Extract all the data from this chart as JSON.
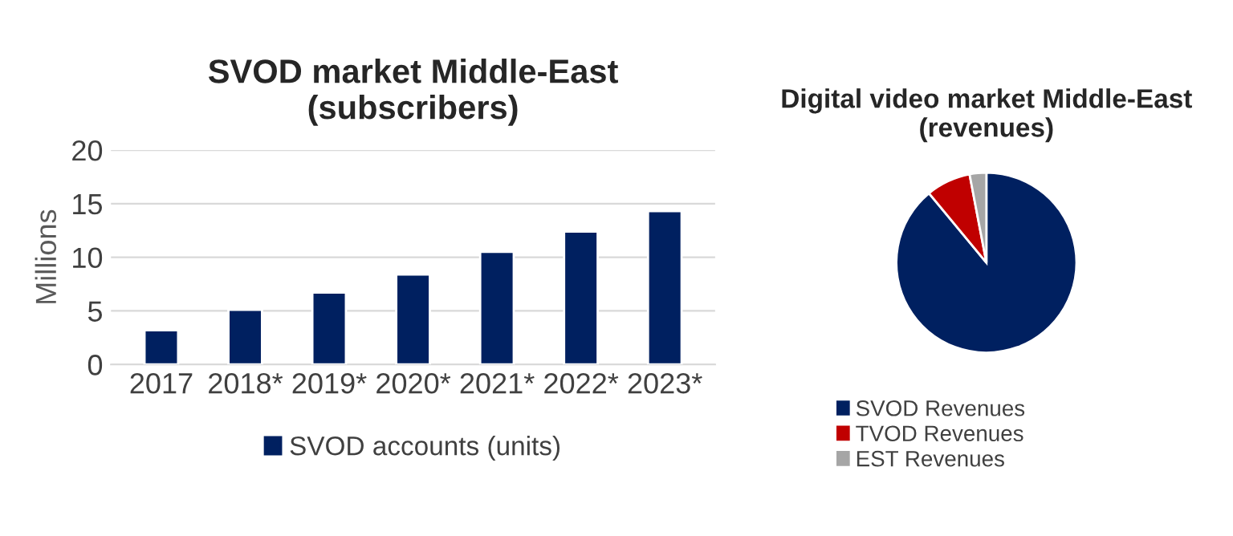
{
  "chart_data": [
    {
      "type": "bar",
      "title": "SVOD market Middle-East\n(subscribers)",
      "ylabel": "Millions",
      "categories": [
        "2017",
        "2018*",
        "2019*",
        "2020*",
        "2021*",
        "2022*",
        "2023*"
      ],
      "series": [
        {
          "name": "SVOD accounts (units)",
          "color": "#002060",
          "values": [
            3.2,
            5.1,
            6.7,
            8.4,
            10.5,
            12.4,
            14.3
          ]
        }
      ],
      "ylim": [
        0,
        20
      ],
      "yticks": [
        0,
        5,
        10,
        15,
        20
      ],
      "grid": "y",
      "legend": "bottom"
    },
    {
      "type": "pie",
      "title": "Digital video market Middle-East\n(revenues)",
      "categories": [
        "SVOD Revenues",
        "TVOD Revenues",
        "EST Revenues"
      ],
      "values": [
        89,
        8,
        3
      ],
      "colors": [
        "#002060",
        "#c00000",
        "#a6a6a6"
      ],
      "legend": "bottom left"
    }
  ]
}
